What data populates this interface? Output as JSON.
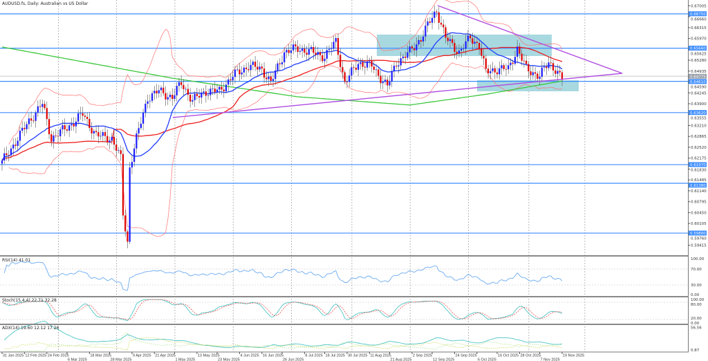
{
  "window": {
    "title": "AUDUSD.fs, Daily: Australian vs US Dollar"
  },
  "colors": {
    "bull": "#1a1aff",
    "bear": "#e00000",
    "ma_fast": "#1e3cff",
    "ma_mid": "#ee1c1c",
    "ma_slow": "#3cc83c",
    "bollinger": "#ff7070",
    "level_line": "#3c8cff",
    "trendline": "#b04fe0",
    "zone": "#a8d8e0",
    "rsi": "#6aaaf0",
    "stoch_main": "#4cc4c4",
    "stoch_signal": "#f05050",
    "adx": "#4cc4c4",
    "plus_di": "#c8d040",
    "minus_di": "#a0e080"
  },
  "chart_data": {
    "type": "candlestick",
    "symbol": "AUDUSD.fs",
    "timeframe": "Daily",
    "price_axis": {
      "range": [
        0.5908,
        0.6719
      ],
      "ticks": [
        "0.67005",
        "0.66660",
        "0.66315",
        "0.65970",
        "0.65625",
        "0.65280",
        "0.64935",
        "0.64590",
        "0.64245",
        "0.63900",
        "0.63555",
        "0.63210",
        "0.62865",
        "0.62520",
        "0.62175",
        "0.61830",
        "0.61485",
        "0.61140",
        "0.60795",
        "0.60450",
        "0.60105",
        "0.59760",
        "0.59415"
      ]
    },
    "date_axis": {
      "ticks": [
        {
          "date": "2025-01-31",
          "label": "31 Jan 2025"
        },
        {
          "date": "2025-02-12",
          "label": "12 Feb 2025"
        },
        {
          "date": "2025-02-24",
          "label": "24 Feb 2025"
        },
        {
          "date": "2025-03-06",
          "label": "6 Mar 2025"
        },
        {
          "date": "2025-03-18",
          "label": "18 Mar 2025"
        },
        {
          "date": "2025-03-28",
          "label": "28 Mar 2025"
        },
        {
          "date": "2025-04-09",
          "label": "9 Apr 2025"
        },
        {
          "date": "2025-04-21",
          "label": "21 Apr 2025"
        },
        {
          "date": "2025-05-01",
          "label": "1 May 2025"
        },
        {
          "date": "2025-05-13",
          "label": "13 May 2025"
        },
        {
          "date": "2025-05-23",
          "label": "23 May 2025"
        },
        {
          "date": "2025-06-04",
          "label": "4 Jun 2025"
        },
        {
          "date": "2025-06-16",
          "label": "16 Jun 2025"
        },
        {
          "date": "2025-06-26",
          "label": "26 Jun 2025"
        },
        {
          "date": "2025-07-08",
          "label": "8 Jul 2025"
        },
        {
          "date": "2025-07-18",
          "label": "18 Jul 2025"
        },
        {
          "date": "2025-07-30",
          "label": "30 Jul 2025"
        },
        {
          "date": "2025-08-11",
          "label": "11 Aug 2025"
        },
        {
          "date": "2025-08-21",
          "label": "21 Aug 2025"
        },
        {
          "date": "2025-09-02",
          "label": "2 Sep 2025"
        },
        {
          "date": "2025-09-12",
          "label": "12 Sep 2025"
        },
        {
          "date": "2025-09-24",
          "label": "24 Sep 2025"
        },
        {
          "date": "2025-10-06",
          "label": "6 Oct 2025"
        },
        {
          "date": "2025-10-16",
          "label": "16 Oct 2025"
        },
        {
          "date": "2025-10-28",
          "label": "28 Oct 2025"
        },
        {
          "date": "2025-11-07",
          "label": "7 Nov 2025"
        },
        {
          "date": "2025-11-19",
          "label": "19 Nov 2025"
        }
      ]
    },
    "close_anchors": [
      [
        "2025-01-31",
        0.6204
      ],
      [
        "2025-02-06",
        0.6259
      ],
      [
        "2025-02-14",
        0.6335
      ],
      [
        "2025-02-21",
        0.639
      ],
      [
        "2025-02-26",
        0.628
      ],
      [
        "2025-03-07",
        0.632
      ],
      [
        "2025-03-14",
        0.6357
      ],
      [
        "2025-03-21",
        0.629
      ],
      [
        "2025-03-30",
        0.628
      ],
      [
        "2025-04-03",
        0.6215
      ],
      [
        "2025-04-04",
        0.604
      ],
      [
        "2025-04-07",
        0.595
      ],
      [
        "2025-04-08",
        0.619
      ],
      [
        "2025-04-11",
        0.628
      ],
      [
        "2025-04-17",
        0.641
      ],
      [
        "2025-04-23",
        0.643
      ],
      [
        "2025-04-30",
        0.641
      ],
      [
        "2025-05-05",
        0.6456
      ],
      [
        "2025-05-11",
        0.64
      ],
      [
        "2025-05-18",
        0.643
      ],
      [
        "2025-05-25",
        0.643
      ],
      [
        "2025-06-01",
        0.6478
      ],
      [
        "2025-06-09",
        0.651
      ],
      [
        "2025-06-16",
        0.65
      ],
      [
        "2025-06-20",
        0.6456
      ],
      [
        "2025-06-27",
        0.6554
      ],
      [
        "2025-07-04",
        0.6565
      ],
      [
        "2025-07-11",
        0.6554
      ],
      [
        "2025-07-18",
        0.654
      ],
      [
        "2025-07-24",
        0.6587
      ],
      [
        "2025-07-29",
        0.6456
      ],
      [
        "2025-08-05",
        0.652
      ],
      [
        "2025-08-12",
        0.651
      ],
      [
        "2025-08-20",
        0.6445
      ],
      [
        "2025-08-25",
        0.652
      ],
      [
        "2025-09-01",
        0.6554
      ],
      [
        "2025-09-07",
        0.6598
      ],
      [
        "2025-09-12",
        0.6664
      ],
      [
        "2025-09-15",
        0.6686
      ],
      [
        "2025-09-19",
        0.6598
      ],
      [
        "2025-09-26",
        0.6554
      ],
      [
        "2025-10-02",
        0.6598
      ],
      [
        "2025-10-07",
        0.6576
      ],
      [
        "2025-10-10",
        0.649
      ],
      [
        "2025-10-16",
        0.65
      ],
      [
        "2025-10-22",
        0.65
      ],
      [
        "2025-10-27",
        0.6565
      ],
      [
        "2025-10-31",
        0.65
      ],
      [
        "2025-11-07",
        0.6478
      ],
      [
        "2025-11-12",
        0.652
      ],
      [
        "2025-11-16",
        0.65
      ],
      [
        "2025-11-19",
        0.6467
      ]
    ],
    "ma200_anchors": [
      [
        "2025-01-31",
        0.657
      ],
      [
        "2025-04-30",
        0.6471
      ],
      [
        "2025-07-04",
        0.6412
      ],
      [
        "2025-09-01",
        0.6386
      ],
      [
        "2025-10-10",
        0.642
      ],
      [
        "2025-11-19",
        0.6462
      ]
    ],
    "levels": [
      "0.66750",
      "0.65660",
      "0.64610",
      "0.63620",
      "0.61970",
      "0.61380",
      "0.59800"
    ],
    "current_price": "0.64775",
    "trendlines": [
      {
        "from": [
          "2025-09-15",
          0.6704
        ],
        "to": [
          "2026-01-00",
          0.649
        ]
      },
      {
        "from": [
          "2025-04-30",
          0.635
        ],
        "to": [
          "2026-01-00",
          0.649
        ]
      }
    ],
    "indicators": {
      "rsi": {
        "label": "RSI(14) 41.01",
        "ticks": [
          "100.00",
          "70.00",
          "30.00",
          "0.00"
        ]
      },
      "stoch": {
        "label": "Stoch(15,4,4) 22.71 32.28",
        "ticks": [
          "100.00",
          "80.00",
          "20.00",
          "0.00"
        ]
      },
      "adx": {
        "label": "ADX(14) 19.60 12.12 17.26",
        "ticks": [
          "56.56",
          "0.87"
        ]
      }
    }
  }
}
